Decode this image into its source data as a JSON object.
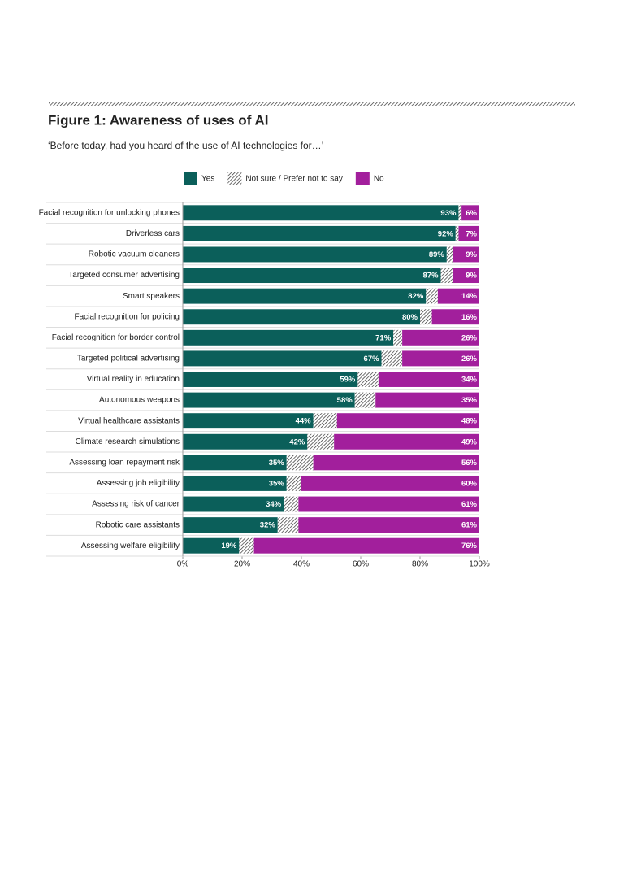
{
  "chart_data": {
    "type": "bar",
    "orientation": "horizontal",
    "stacked": true,
    "title": "Figure 1: Awareness of uses of AI",
    "subtitle": "‘Before today, had you heard of the use of AI technologies for…’",
    "categories": [
      "Facial recognition for unlocking phones",
      "Driverless cars",
      "Robotic vacuum cleaners",
      "Targeted consumer advertising",
      "Smart speakers",
      "Facial recognition for policing",
      "Facial recognition for border control",
      "Targeted political advertising",
      "Virtual reality in education",
      "Autonomous weapons",
      "Virtual healthcare assistants",
      "Climate research simulations",
      "Assessing loan repayment risk",
      "Assessing job eligibility",
      "Assessing risk of cancer",
      "Robotic care assistants",
      "Assessing welfare eligibility"
    ],
    "series": [
      {
        "name": "Yes",
        "color": "#0b5f5a",
        "fill": "solid",
        "values": [
          93,
          92,
          89,
          87,
          82,
          80,
          71,
          67,
          59,
          58,
          44,
          42,
          35,
          35,
          34,
          32,
          19
        ],
        "value_labels": [
          "93%",
          "92%",
          "89%",
          "87%",
          "82%",
          "80%",
          "71%",
          "67%",
          "59%",
          "58%",
          "44%",
          "42%",
          "35%",
          "35%",
          "34%",
          "32%",
          "19%"
        ]
      },
      {
        "name": "Not sure / Prefer not to say",
        "color": "#333333",
        "fill": "hatch",
        "values": [
          1,
          1,
          2,
          4,
          4,
          4,
          3,
          7,
          7,
          7,
          8,
          9,
          9,
          5,
          5,
          7,
          5
        ]
      },
      {
        "name": "No",
        "color": "#a21f9c",
        "fill": "solid",
        "values": [
          6,
          7,
          9,
          9,
          14,
          16,
          26,
          26,
          34,
          35,
          48,
          49,
          56,
          60,
          61,
          61,
          76
        ],
        "value_labels": [
          "6%",
          "7%",
          "9%",
          "9%",
          "14%",
          "16%",
          "26%",
          "26%",
          "34%",
          "35%",
          "48%",
          "49%",
          "56%",
          "60%",
          "61%",
          "61%",
          "76%"
        ]
      }
    ],
    "xlim": [
      0,
      100
    ],
    "xticks": [
      {
        "value": 0,
        "label": "0%"
      },
      {
        "value": 20,
        "label": "20%"
      },
      {
        "value": 40,
        "label": "40%"
      },
      {
        "value": 60,
        "label": "60%"
      },
      {
        "value": 80,
        "label": "80%"
      },
      {
        "value": 100,
        "label": "100%"
      }
    ]
  }
}
